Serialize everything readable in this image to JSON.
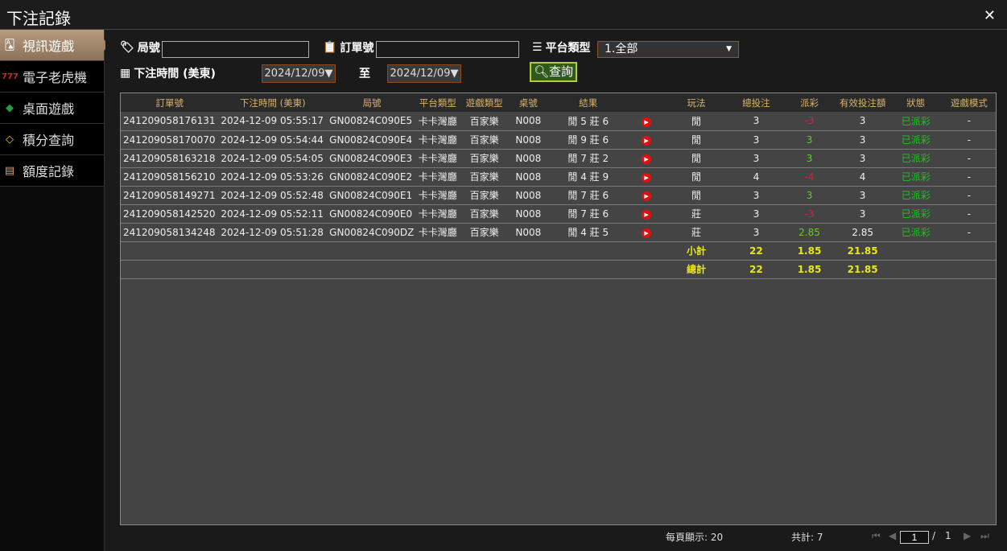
{
  "window": {
    "title": "下注記錄",
    "close_icon": "close-icon"
  },
  "sidebar": {
    "items": [
      {
        "label": "視訊遊戲",
        "icon": "cards-icon",
        "active": true
      },
      {
        "label": "電子老虎機",
        "icon": "slot-777-icon"
      },
      {
        "label": "桌面遊戲",
        "icon": "chips-icon"
      },
      {
        "label": "積分查詢",
        "icon": "diamond-icon"
      },
      {
        "label": "額度記錄",
        "icon": "document-icon"
      }
    ]
  },
  "filters": {
    "round_label": "局號",
    "round_value": "",
    "order_label": "訂單號",
    "order_value": "",
    "platform_label": "平台類型",
    "platform_value": "1.全部",
    "time_label": "下注時間 (美東)",
    "date_from": "2024/12/09▼",
    "to_label": "至",
    "date_to": "2024/12/09▼",
    "query_label": "查詢"
  },
  "table": {
    "headers": [
      "訂單號",
      "下注時間 (美東)",
      "局號",
      "平台類型",
      "遊戲類型",
      "桌號",
      "結果",
      "",
      "玩法",
      "總投注",
      "派彩",
      "有效投注額",
      "狀態",
      "遊戲模式"
    ],
    "rows": [
      [
        "241209058176131",
        "2024-12-09 05:55:17",
        "GN00824C090E5",
        "卡卡灣廳",
        "百家樂",
        "N008",
        "閒 5 莊 6",
        "閒",
        "3",
        "-3",
        "3",
        "已派彩",
        "-"
      ],
      [
        "241209058170070",
        "2024-12-09 05:54:44",
        "GN00824C090E4",
        "卡卡灣廳",
        "百家樂",
        "N008",
        "閒 9 莊 6",
        "閒",
        "3",
        "3",
        "3",
        "已派彩",
        "-"
      ],
      [
        "241209058163218",
        "2024-12-09 05:54:05",
        "GN00824C090E3",
        "卡卡灣廳",
        "百家樂",
        "N008",
        "閒 7 莊 2",
        "閒",
        "3",
        "3",
        "3",
        "已派彩",
        "-"
      ],
      [
        "241209058156210",
        "2024-12-09 05:53:26",
        "GN00824C090E2",
        "卡卡灣廳",
        "百家樂",
        "N008",
        "閒 4 莊 9",
        "閒",
        "4",
        "-4",
        "4",
        "已派彩",
        "-"
      ],
      [
        "241209058149271",
        "2024-12-09 05:52:48",
        "GN00824C090E1",
        "卡卡灣廳",
        "百家樂",
        "N008",
        "閒 7 莊 6",
        "閒",
        "3",
        "3",
        "3",
        "已派彩",
        "-"
      ],
      [
        "241209058142520",
        "2024-12-09 05:52:11",
        "GN00824C090E0",
        "卡卡灣廳",
        "百家樂",
        "N008",
        "閒 7 莊 6",
        "莊",
        "3",
        "-3",
        "3",
        "已派彩",
        "-"
      ],
      [
        "241209058134248",
        "2024-12-09 05:51:28",
        "GN00824C090DZ",
        "卡卡灣廳",
        "百家樂",
        "N008",
        "閒 4 莊 5",
        "莊",
        "3",
        "2.85",
        "2.85",
        "已派彩",
        "-"
      ]
    ],
    "subtotal": {
      "label": "小計",
      "bet": "22",
      "payout": "1.85",
      "valid": "21.85"
    },
    "total": {
      "label": "總計",
      "bet": "22",
      "payout": "1.85",
      "valid": "21.85"
    }
  },
  "pager": {
    "per_page": "每頁顯示: 20",
    "total": "共計: 7",
    "page": "1",
    "sep": "/",
    "pages": "1"
  },
  "colors": {
    "negative": "#d0203a",
    "positive": "#5bd320",
    "total": "#e8e818",
    "header": "#d8b36a"
  }
}
